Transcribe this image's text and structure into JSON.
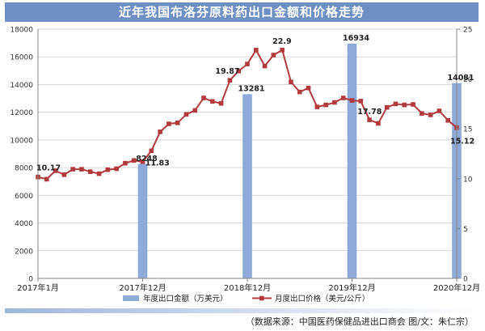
{
  "title": "近年我国布洛芬原料药出口金额和价格走势",
  "source_note": "（数据来源：中国医药保健品进出口商会  图/文：朱仁宗）",
  "colors": {
    "title_bg": "#6d8fc4",
    "bar": "#8fa9d8",
    "bar_edge": "#7f9ccf",
    "line": "#b03a3e",
    "marker": "#b03a3e",
    "grid": "#d9d9d9",
    "axis": "#888888"
  },
  "chart_data": {
    "type": "bar+line",
    "x_tick_labels": [
      "2017年1月",
      "2017年12月",
      "2018年12月",
      "2019年12月",
      "2020年12月"
    ],
    "y_left": {
      "ticks": [
        0,
        2000,
        4000,
        6000,
        8000,
        10000,
        12000,
        14000,
        16000,
        18000
      ],
      "lim": [
        0,
        18000
      ]
    },
    "y_right": {
      "ticks": [
        0,
        5,
        10,
        15,
        20,
        25
      ],
      "lim": [
        0,
        25
      ]
    },
    "bars": {
      "name": "年度出口金额（万美元）",
      "months": [
        12,
        24,
        36,
        48
      ],
      "values": [
        8248,
        13281,
        16934,
        14081
      ],
      "labels": [
        "8248",
        "13281",
        "16934",
        "14081"
      ]
    },
    "line": {
      "name": "月度出口价格（美元/公斤）",
      "values": [
        10.17,
        9.95,
        10.8,
        10.4,
        10.95,
        10.95,
        10.7,
        10.5,
        10.9,
        11.0,
        11.55,
        11.83,
        11.7,
        12.8,
        14.7,
        15.5,
        15.6,
        16.45,
        16.85,
        18.1,
        17.75,
        17.55,
        19.87,
        20.8,
        21.5,
        22.9,
        21.3,
        22.4,
        22.9,
        19.7,
        18.7,
        19.1,
        17.2,
        17.4,
        17.65,
        18.1,
        17.85,
        17.78,
        15.9,
        15.55,
        17.15,
        17.5,
        17.4,
        17.45,
        16.55,
        16.4,
        16.8,
        15.85,
        15.12
      ],
      "annotations": [
        {
          "index": 0,
          "text": "10.17"
        },
        {
          "index": 11,
          "text": "11.83"
        },
        {
          "index": 22,
          "text": "19.87"
        },
        {
          "index": 28,
          "text": "22.9"
        },
        {
          "index": 37,
          "text": "17.78"
        },
        {
          "index": 48,
          "text": "15.12"
        }
      ]
    },
    "grid": true,
    "legend_position": "bottom"
  }
}
